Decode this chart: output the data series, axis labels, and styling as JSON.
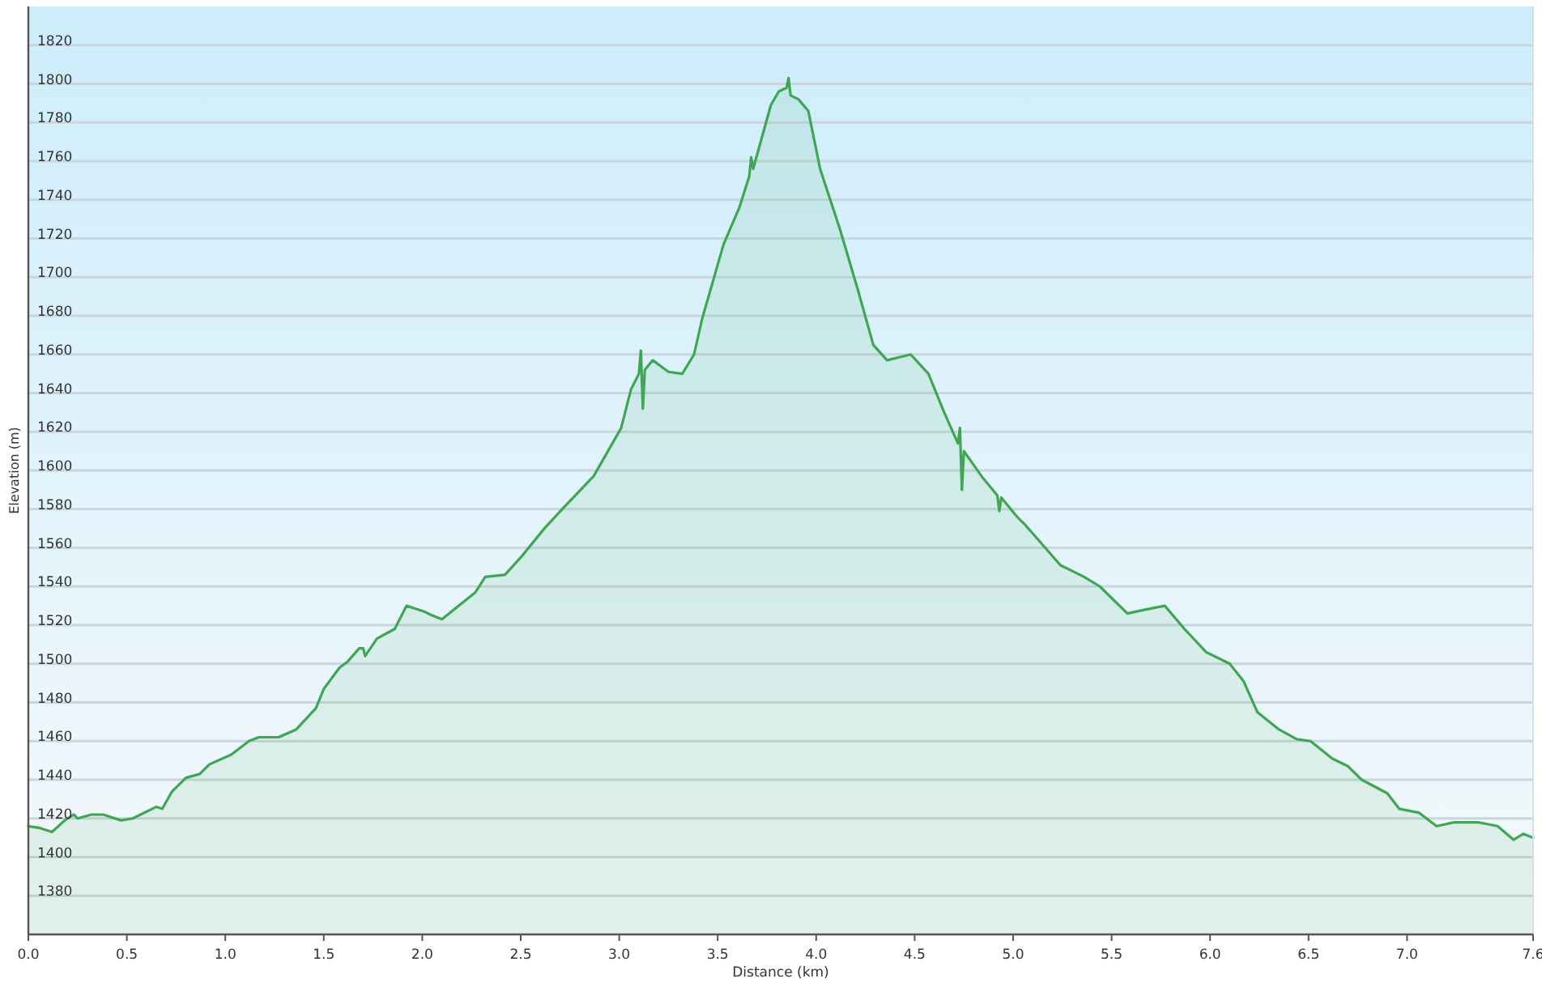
{
  "chart_data": {
    "type": "area",
    "xlabel": "Distance (km)",
    "ylabel": "Elevation (m)",
    "x": [
      0,
      0.06,
      0.12,
      0.185,
      0.23,
      0.25,
      0.32,
      0.38,
      0.47,
      0.53,
      0.65,
      0.68,
      0.73,
      0.8,
      0.87,
      0.92,
      1.03,
      1.12,
      1.17,
      1.27,
      1.36,
      1.46,
      1.5,
      1.58,
      1.62,
      1.68,
      1.7,
      1.71,
      1.77,
      1.86,
      1.92,
      2.01,
      2.05,
      2.1,
      2.16,
      2.27,
      2.32,
      2.42,
      2.5,
      2.62,
      2.72,
      2.87,
      3.01,
      3.06,
      3.1,
      3.11,
      3.12,
      3.13,
      3.17,
      3.25,
      3.32,
      3.38,
      3.42,
      3.53,
      3.61,
      3.66,
      3.67,
      3.68,
      3.77,
      3.81,
      3.85,
      3.86,
      3.87,
      3.91,
      3.96,
      4.02,
      4.12,
      4.21,
      4.29,
      4.36,
      4.48,
      4.57,
      4.65,
      4.72,
      4.73,
      4.74,
      4.75,
      4.84,
      4.92,
      4.93,
      4.94,
      5.02,
      5.06,
      5.24,
      5.36,
      5.44,
      5.58,
      5.67,
      5.77,
      5.87,
      5.98,
      6.1,
      6.17,
      6.24,
      6.35,
      6.44,
      6.51,
      6.62,
      6.7,
      6.77,
      6.9,
      6.96,
      7.06,
      7.15,
      7.24,
      7.36,
      7.46,
      7.54,
      7.59,
      7.64
    ],
    "series": [
      {
        "color": "#3fa653",
        "values": [
          1416,
          1415,
          1413,
          1419,
          1422,
          1420,
          1422,
          1422,
          1419,
          1420,
          1426,
          1425,
          1434,
          1441,
          1443,
          1448,
          1453,
          1460,
          1462,
          1462,
          1466,
          1477,
          1487,
          1498,
          1501,
          1508,
          1508,
          1504,
          1513,
          1518,
          1530,
          1527,
          1525,
          1523,
          1528,
          1537,
          1545,
          1546,
          1555,
          1570,
          1581,
          1597,
          1622,
          1642,
          1650,
          1662,
          1632,
          1652,
          1657,
          1651,
          1650,
          1660,
          1678,
          1717,
          1736,
          1752,
          1762,
          1756,
          1789,
          1796,
          1798,
          1803,
          1794,
          1792,
          1786,
          1756,
          1725,
          1694,
          1665,
          1657,
          1660,
          1650,
          1630,
          1614,
          1622,
          1590,
          1610,
          1597,
          1587,
          1579,
          1586,
          1576,
          1572,
          1551,
          1545,
          1540,
          1526,
          1528,
          1530,
          1518,
          1506,
          1500,
          1491,
          1475,
          1466,
          1461,
          1460,
          1451,
          1447,
          1440,
          1433,
          1425,
          1423,
          1416,
          1418,
          1418,
          1416,
          1409,
          1412,
          1410
        ]
      }
    ],
    "xlim": [
      0,
      7.64
    ],
    "xticks": [
      {
        "value": 0,
        "label": "0.0"
      },
      0.5,
      {
        "value": 1,
        "label": "1.0"
      },
      1.5,
      {
        "value": 2,
        "label": "2.0"
      },
      2.5,
      {
        "value": 3,
        "label": "3.0"
      },
      3.5,
      {
        "value": 4,
        "label": "4.0"
      },
      4.5,
      {
        "value": 5,
        "label": "5.0"
      },
      5.5,
      {
        "value": 6,
        "label": "6.0"
      },
      6.5,
      {
        "value": 7,
        "label": "7.0"
      },
      {
        "value": 7.64,
        "label": "7.6"
      }
    ],
    "ylim": [
      1360,
      1840
    ],
    "yticks": [
      1380,
      1400,
      1420,
      1440,
      1460,
      1480,
      1500,
      1520,
      1540,
      1560,
      1580,
      1600,
      1620,
      1640,
      1660,
      1680,
      1700,
      1720,
      1740,
      1760,
      1780,
      1800,
      1820
    ],
    "grid": "y"
  }
}
